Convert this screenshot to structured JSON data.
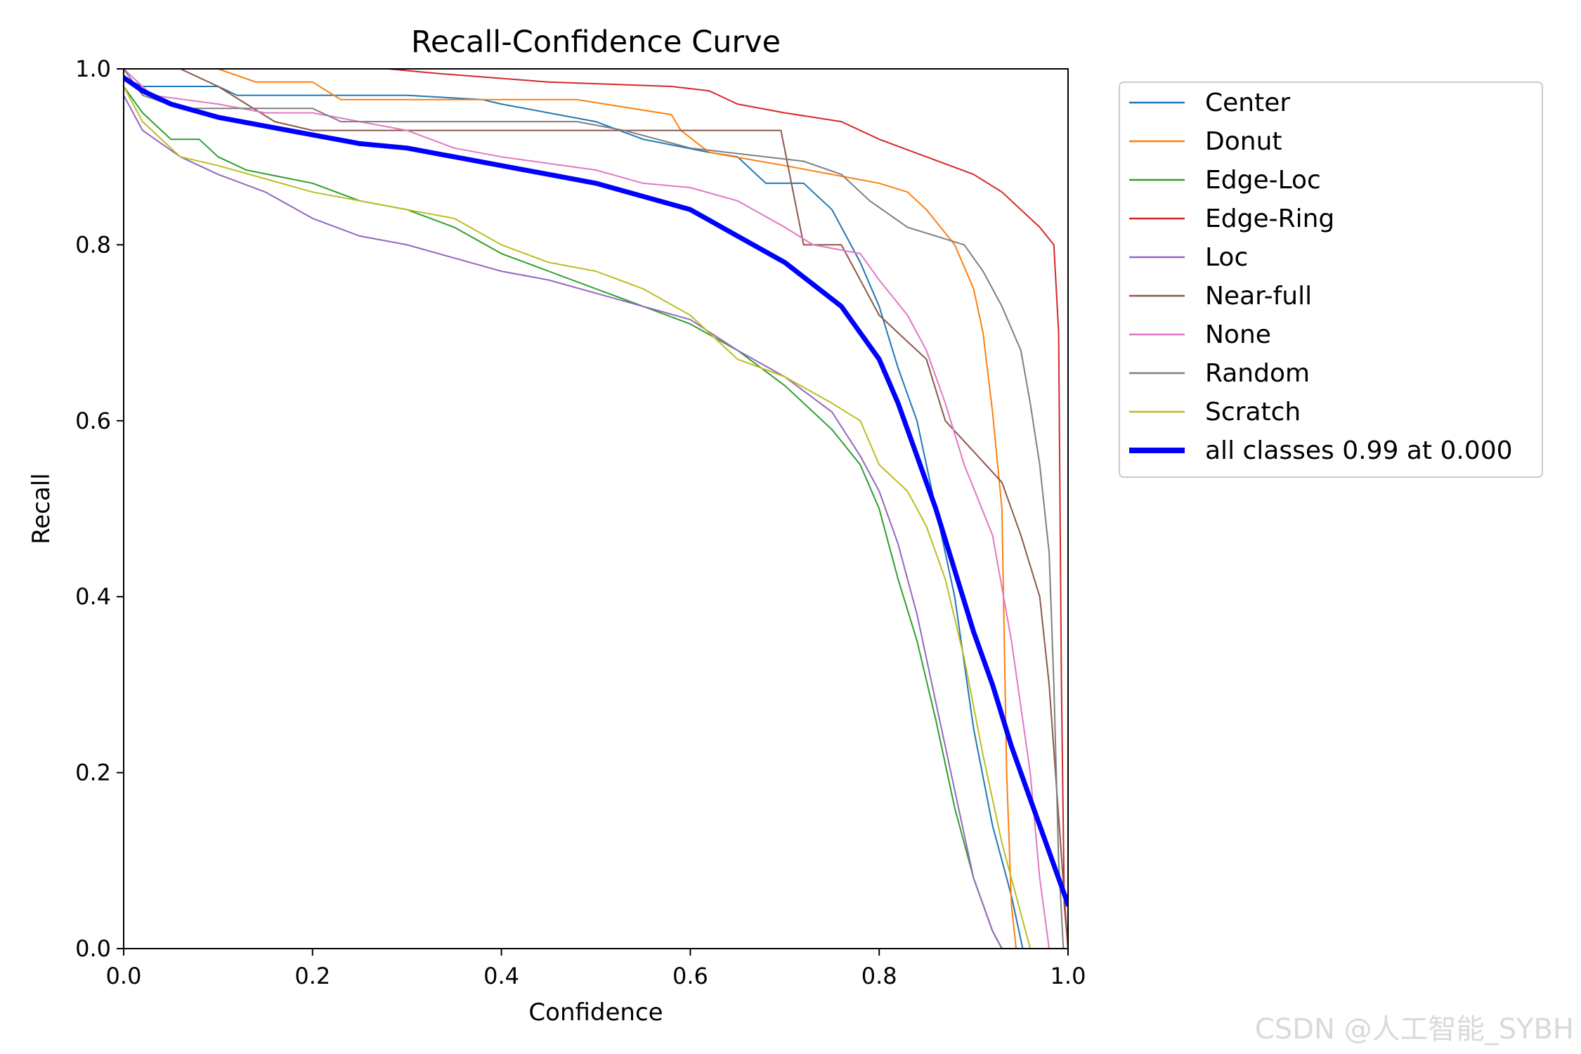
{
  "watermark": "CSDN @人工智能_SYBH",
  "chart_data": {
    "type": "line",
    "title": "Recall-Confidence Curve",
    "xlabel": "Confidence",
    "ylabel": "Recall",
    "xlim": [
      0.0,
      1.0
    ],
    "ylim": [
      0.0,
      1.0
    ],
    "xticks": [
      0.0,
      0.2,
      0.4,
      0.6,
      0.8,
      1.0
    ],
    "yticks": [
      0.0,
      0.2,
      0.4,
      0.6,
      0.8,
      1.0
    ],
    "tick_labels": [
      "0.0",
      "0.2",
      "0.4",
      "0.6",
      "0.8",
      "1.0"
    ],
    "legend_position": "outside-right-top",
    "series": [
      {
        "name": "Center",
        "color": "#1f77b4",
        "width": 2,
        "points": [
          [
            0,
            0.99
          ],
          [
            0.02,
            0.98
          ],
          [
            0.1,
            0.98
          ],
          [
            0.12,
            0.97
          ],
          [
            0.3,
            0.97
          ],
          [
            0.38,
            0.965
          ],
          [
            0.4,
            0.96
          ],
          [
            0.5,
            0.94
          ],
          [
            0.55,
            0.92
          ],
          [
            0.62,
            0.905
          ],
          [
            0.65,
            0.9
          ],
          [
            0.68,
            0.87
          ],
          [
            0.72,
            0.87
          ],
          [
            0.75,
            0.84
          ],
          [
            0.78,
            0.78
          ],
          [
            0.8,
            0.73
          ],
          [
            0.82,
            0.66
          ],
          [
            0.84,
            0.6
          ],
          [
            0.86,
            0.5
          ],
          [
            0.88,
            0.4
          ],
          [
            0.9,
            0.25
          ],
          [
            0.92,
            0.14
          ],
          [
            0.94,
            0.06
          ],
          [
            0.95,
            0.01
          ],
          [
            0.952,
            0.0
          ]
        ]
      },
      {
        "name": "Donut",
        "color": "#ff7f0e",
        "width": 2,
        "points": [
          [
            0,
            1.0
          ],
          [
            0.1,
            1.0
          ],
          [
            0.14,
            0.985
          ],
          [
            0.2,
            0.985
          ],
          [
            0.23,
            0.965
          ],
          [
            0.48,
            0.965
          ],
          [
            0.58,
            0.948
          ],
          [
            0.59,
            0.93
          ],
          [
            0.62,
            0.905
          ],
          [
            0.7,
            0.89
          ],
          [
            0.8,
            0.87
          ],
          [
            0.83,
            0.86
          ],
          [
            0.85,
            0.84
          ],
          [
            0.88,
            0.8
          ],
          [
            0.9,
            0.75
          ],
          [
            0.91,
            0.7
          ],
          [
            0.92,
            0.61
          ],
          [
            0.93,
            0.5
          ],
          [
            0.935,
            0.2
          ],
          [
            0.94,
            0.05
          ],
          [
            0.945,
            0.0
          ]
        ]
      },
      {
        "name": "Edge-Loc",
        "color": "#2ca02c",
        "width": 2,
        "points": [
          [
            0,
            0.98
          ],
          [
            0.02,
            0.95
          ],
          [
            0.05,
            0.92
          ],
          [
            0.08,
            0.92
          ],
          [
            0.1,
            0.9
          ],
          [
            0.13,
            0.885
          ],
          [
            0.2,
            0.87
          ],
          [
            0.25,
            0.85
          ],
          [
            0.3,
            0.84
          ],
          [
            0.35,
            0.82
          ],
          [
            0.4,
            0.79
          ],
          [
            0.45,
            0.77
          ],
          [
            0.5,
            0.75
          ],
          [
            0.55,
            0.73
          ],
          [
            0.6,
            0.71
          ],
          [
            0.65,
            0.68
          ],
          [
            0.7,
            0.64
          ],
          [
            0.75,
            0.59
          ],
          [
            0.78,
            0.55
          ],
          [
            0.8,
            0.5
          ],
          [
            0.82,
            0.42
          ],
          [
            0.84,
            0.35
          ],
          [
            0.86,
            0.26
          ],
          [
            0.88,
            0.16
          ],
          [
            0.9,
            0.08
          ],
          [
            0.92,
            0.02
          ],
          [
            0.93,
            0.0
          ]
        ]
      },
      {
        "name": "Edge-Ring",
        "color": "#d62728",
        "width": 2,
        "points": [
          [
            0,
            1.0
          ],
          [
            0.28,
            1.0
          ],
          [
            0.33,
            0.995
          ],
          [
            0.45,
            0.985
          ],
          [
            0.58,
            0.98
          ],
          [
            0.62,
            0.975
          ],
          [
            0.65,
            0.96
          ],
          [
            0.7,
            0.95
          ],
          [
            0.76,
            0.94
          ],
          [
            0.8,
            0.92
          ],
          [
            0.85,
            0.9
          ],
          [
            0.9,
            0.88
          ],
          [
            0.93,
            0.86
          ],
          [
            0.95,
            0.84
          ],
          [
            0.97,
            0.82
          ],
          [
            0.985,
            0.8
          ],
          [
            0.99,
            0.7
          ],
          [
            0.993,
            0.3
          ],
          [
            0.996,
            0.05
          ],
          [
            1.0,
            0.0
          ]
        ]
      },
      {
        "name": "Loc",
        "color": "#9467bd",
        "width": 2,
        "points": [
          [
            0,
            0.97
          ],
          [
            0.02,
            0.93
          ],
          [
            0.06,
            0.9
          ],
          [
            0.1,
            0.88
          ],
          [
            0.15,
            0.86
          ],
          [
            0.2,
            0.83
          ],
          [
            0.25,
            0.81
          ],
          [
            0.3,
            0.8
          ],
          [
            0.35,
            0.785
          ],
          [
            0.4,
            0.77
          ],
          [
            0.45,
            0.76
          ],
          [
            0.5,
            0.745
          ],
          [
            0.55,
            0.73
          ],
          [
            0.6,
            0.715
          ],
          [
            0.65,
            0.68
          ],
          [
            0.7,
            0.65
          ],
          [
            0.75,
            0.61
          ],
          [
            0.78,
            0.56
          ],
          [
            0.8,
            0.52
          ],
          [
            0.82,
            0.46
          ],
          [
            0.84,
            0.38
          ],
          [
            0.86,
            0.28
          ],
          [
            0.88,
            0.18
          ],
          [
            0.9,
            0.08
          ],
          [
            0.92,
            0.02
          ],
          [
            0.93,
            0.0
          ]
        ]
      },
      {
        "name": "Near-full",
        "color": "#8c564b",
        "width": 2,
        "points": [
          [
            0,
            1.0
          ],
          [
            0.06,
            1.0
          ],
          [
            0.1,
            0.98
          ],
          [
            0.13,
            0.96
          ],
          [
            0.16,
            0.94
          ],
          [
            0.2,
            0.93
          ],
          [
            0.696,
            0.93
          ],
          [
            0.72,
            0.8
          ],
          [
            0.76,
            0.8
          ],
          [
            0.8,
            0.72
          ],
          [
            0.85,
            0.67
          ],
          [
            0.87,
            0.6
          ],
          [
            0.93,
            0.53
          ],
          [
            0.95,
            0.47
          ],
          [
            0.97,
            0.4
          ],
          [
            0.98,
            0.3
          ],
          [
            0.99,
            0.15
          ],
          [
            1.0,
            0.0
          ]
        ]
      },
      {
        "name": "None",
        "color": "#e377c2",
        "width": 2,
        "points": [
          [
            0,
            1.0
          ],
          [
            0.03,
            0.97
          ],
          [
            0.1,
            0.96
          ],
          [
            0.15,
            0.95
          ],
          [
            0.2,
            0.95
          ],
          [
            0.3,
            0.93
          ],
          [
            0.35,
            0.91
          ],
          [
            0.4,
            0.9
          ],
          [
            0.5,
            0.885
          ],
          [
            0.55,
            0.87
          ],
          [
            0.6,
            0.865
          ],
          [
            0.65,
            0.85
          ],
          [
            0.7,
            0.82
          ],
          [
            0.73,
            0.8
          ],
          [
            0.78,
            0.79
          ],
          [
            0.8,
            0.76
          ],
          [
            0.83,
            0.72
          ],
          [
            0.85,
            0.68
          ],
          [
            0.87,
            0.62
          ],
          [
            0.89,
            0.55
          ],
          [
            0.92,
            0.47
          ],
          [
            0.94,
            0.35
          ],
          [
            0.96,
            0.2
          ],
          [
            0.97,
            0.08
          ],
          [
            0.98,
            0.0
          ]
        ]
      },
      {
        "name": "Random",
        "color": "#7f7f7f",
        "width": 2,
        "points": [
          [
            0,
            1.0
          ],
          [
            0.02,
            0.97
          ],
          [
            0.06,
            0.955
          ],
          [
            0.2,
            0.955
          ],
          [
            0.23,
            0.94
          ],
          [
            0.48,
            0.94
          ],
          [
            0.53,
            0.93
          ],
          [
            0.6,
            0.91
          ],
          [
            0.72,
            0.895
          ],
          [
            0.76,
            0.88
          ],
          [
            0.79,
            0.85
          ],
          [
            0.83,
            0.82
          ],
          [
            0.86,
            0.81
          ],
          [
            0.89,
            0.8
          ],
          [
            0.91,
            0.77
          ],
          [
            0.93,
            0.73
          ],
          [
            0.95,
            0.68
          ],
          [
            0.96,
            0.62
          ],
          [
            0.97,
            0.55
          ],
          [
            0.98,
            0.45
          ],
          [
            0.985,
            0.3
          ],
          [
            0.99,
            0.1
          ],
          [
            0.995,
            0.0
          ]
        ]
      },
      {
        "name": "Scratch",
        "color": "#bcbd22",
        "width": 2,
        "points": [
          [
            0,
            0.98
          ],
          [
            0.02,
            0.94
          ],
          [
            0.06,
            0.9
          ],
          [
            0.1,
            0.89
          ],
          [
            0.15,
            0.875
          ],
          [
            0.2,
            0.86
          ],
          [
            0.25,
            0.85
          ],
          [
            0.3,
            0.84
          ],
          [
            0.35,
            0.83
          ],
          [
            0.4,
            0.8
          ],
          [
            0.45,
            0.78
          ],
          [
            0.5,
            0.77
          ],
          [
            0.55,
            0.75
          ],
          [
            0.6,
            0.72
          ],
          [
            0.65,
            0.67
          ],
          [
            0.7,
            0.65
          ],
          [
            0.75,
            0.62
          ],
          [
            0.78,
            0.6
          ],
          [
            0.8,
            0.55
          ],
          [
            0.83,
            0.52
          ],
          [
            0.85,
            0.48
          ],
          [
            0.87,
            0.42
          ],
          [
            0.89,
            0.33
          ],
          [
            0.91,
            0.22
          ],
          [
            0.93,
            0.12
          ],
          [
            0.95,
            0.04
          ],
          [
            0.96,
            0.0
          ]
        ]
      },
      {
        "name": "all classes 0.99 at 0.000",
        "color": "#0000ff",
        "width": 7,
        "points": [
          [
            0,
            0.99
          ],
          [
            0.02,
            0.975
          ],
          [
            0.05,
            0.96
          ],
          [
            0.1,
            0.945
          ],
          [
            0.15,
            0.935
          ],
          [
            0.2,
            0.925
          ],
          [
            0.25,
            0.915
          ],
          [
            0.3,
            0.91
          ],
          [
            0.35,
            0.9
          ],
          [
            0.4,
            0.89
          ],
          [
            0.45,
            0.88
          ],
          [
            0.5,
            0.87
          ],
          [
            0.55,
            0.855
          ],
          [
            0.6,
            0.84
          ],
          [
            0.65,
            0.81
          ],
          [
            0.7,
            0.78
          ],
          [
            0.73,
            0.755
          ],
          [
            0.76,
            0.73
          ],
          [
            0.78,
            0.7
          ],
          [
            0.8,
            0.67
          ],
          [
            0.82,
            0.62
          ],
          [
            0.84,
            0.56
          ],
          [
            0.86,
            0.5
          ],
          [
            0.88,
            0.43
          ],
          [
            0.9,
            0.36
          ],
          [
            0.92,
            0.3
          ],
          [
            0.94,
            0.23
          ],
          [
            0.96,
            0.17
          ],
          [
            0.98,
            0.11
          ],
          [
            1.0,
            0.05
          ]
        ]
      }
    ]
  }
}
